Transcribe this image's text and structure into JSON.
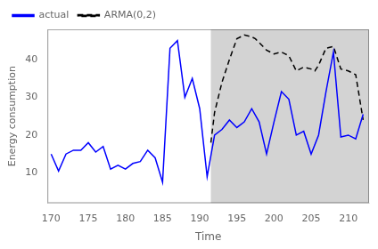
{
  "chart_data": {
    "type": "line",
    "xlabel": "Time",
    "ylabel": "Energy consumption",
    "series": [
      {
        "name": "actual",
        "color": "#0000FF",
        "line_style": "solid",
        "x": [
          170,
          171,
          172,
          173,
          174,
          175,
          176,
          177,
          178,
          179,
          180,
          181,
          182,
          183,
          184,
          185,
          186,
          187,
          188,
          189,
          190,
          191,
          192,
          193,
          194,
          195,
          196,
          197,
          198,
          199,
          200,
          201,
          202,
          203,
          204,
          205,
          206,
          207,
          208,
          209,
          210,
          211,
          212
        ],
        "values": [
          15,
          10.5,
          15,
          16,
          16,
          18,
          15.5,
          17,
          11,
          12,
          11,
          12.5,
          13,
          16,
          14,
          7.5,
          43,
          45,
          30,
          35,
          27,
          9,
          20,
          21.5,
          24,
          22,
          23.5,
          27,
          23.5,
          15,
          23.5,
          31.5,
          29.5,
          20,
          21,
          15,
          20,
          31.5,
          42,
          19.5,
          20,
          19,
          25.5
        ]
      },
      {
        "name": "ARMA(0,2)",
        "color": "#000000",
        "line_style": "dashed",
        "x": [
          191.5,
          192,
          193,
          194,
          195,
          196,
          197,
          197.5,
          198,
          199,
          200,
          201,
          201.5,
          202,
          203,
          204,
          205,
          205.5,
          206,
          207,
          208,
          209,
          210,
          211,
          212
        ],
        "values": [
          18,
          26,
          34,
          40,
          45.5,
          46.5,
          46,
          45.5,
          44.5,
          42.5,
          41.5,
          42,
          41.5,
          41,
          37,
          38,
          37.5,
          37,
          38.5,
          43,
          43.5,
          37.5,
          37,
          36,
          24
        ]
      }
    ],
    "shade": {
      "x": [
        191.5,
        212.8
      ],
      "color": "#d3d3d3"
    },
    "xlim": [
      169.5,
      212.8
    ],
    "xticks": [
      170,
      175,
      180,
      185,
      190,
      195,
      200,
      205,
      210
    ],
    "ylim": [
      2,
      48
    ],
    "yticks": [
      10,
      20,
      30,
      40
    ],
    "grid": false,
    "legend": "upper left"
  }
}
